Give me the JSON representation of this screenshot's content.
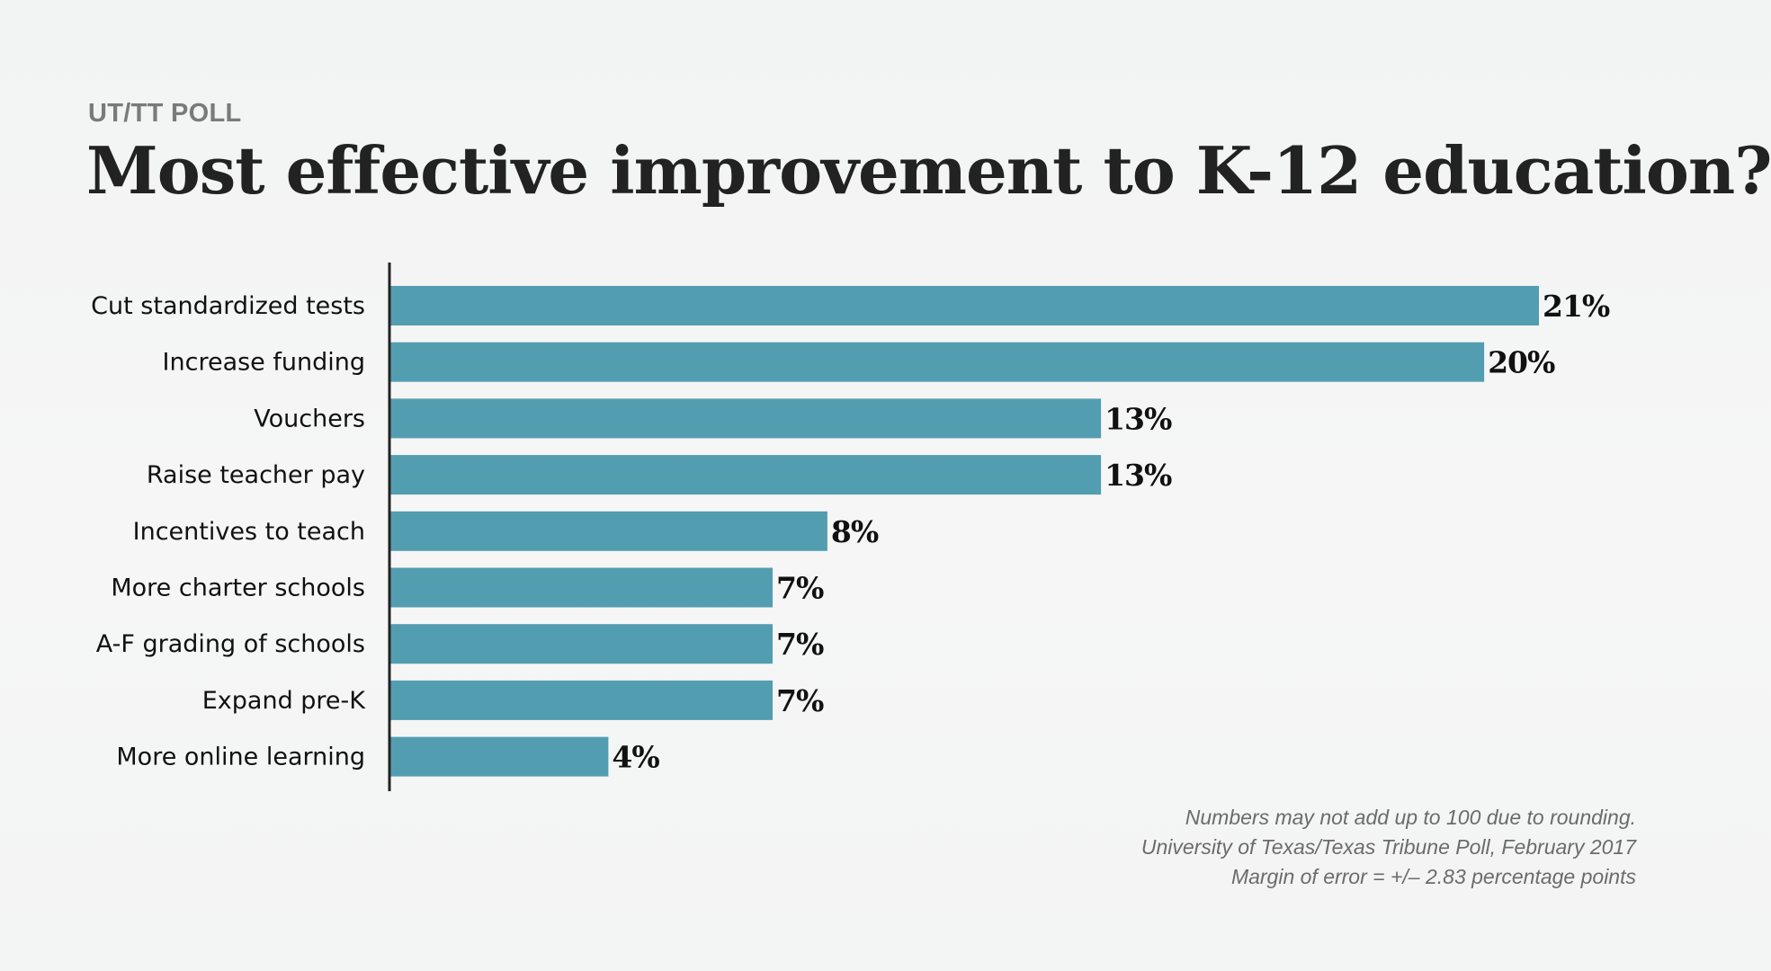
{
  "kicker": "UT/TT POLL",
  "colors": {
    "bar": "#539db1",
    "axis": "#222222",
    "category_text": "#111111",
    "value_text": "#111111"
  },
  "chart_data": {
    "type": "bar",
    "orientation": "horizontal",
    "title": "Most effective improvement to K-12 education?",
    "xlabel": "",
    "ylabel": "",
    "categories": [
      "Cut standardized tests",
      "Increase funding",
      "Vouchers",
      "Raise teacher pay",
      "Incentives to teach",
      "More charter schools",
      "A-F grading of schools",
      "Expand pre-K",
      "More online learning"
    ],
    "values": [
      21,
      20,
      13,
      13,
      8,
      7,
      7,
      7,
      4
    ],
    "value_labels": [
      "21%",
      "20%",
      "13%",
      "13%",
      "8%",
      "7%",
      "7%",
      "7%",
      "4%"
    ],
    "unit": "%",
    "xlim": [
      0,
      21
    ],
    "grid": false,
    "legend": "none"
  },
  "notes": [
    "Numbers may not add up to 100 due to rounding.",
    "University of Texas/Texas Tribune Poll, February 2017",
    "Margin of error = +/– 2.83 percentage points"
  ]
}
